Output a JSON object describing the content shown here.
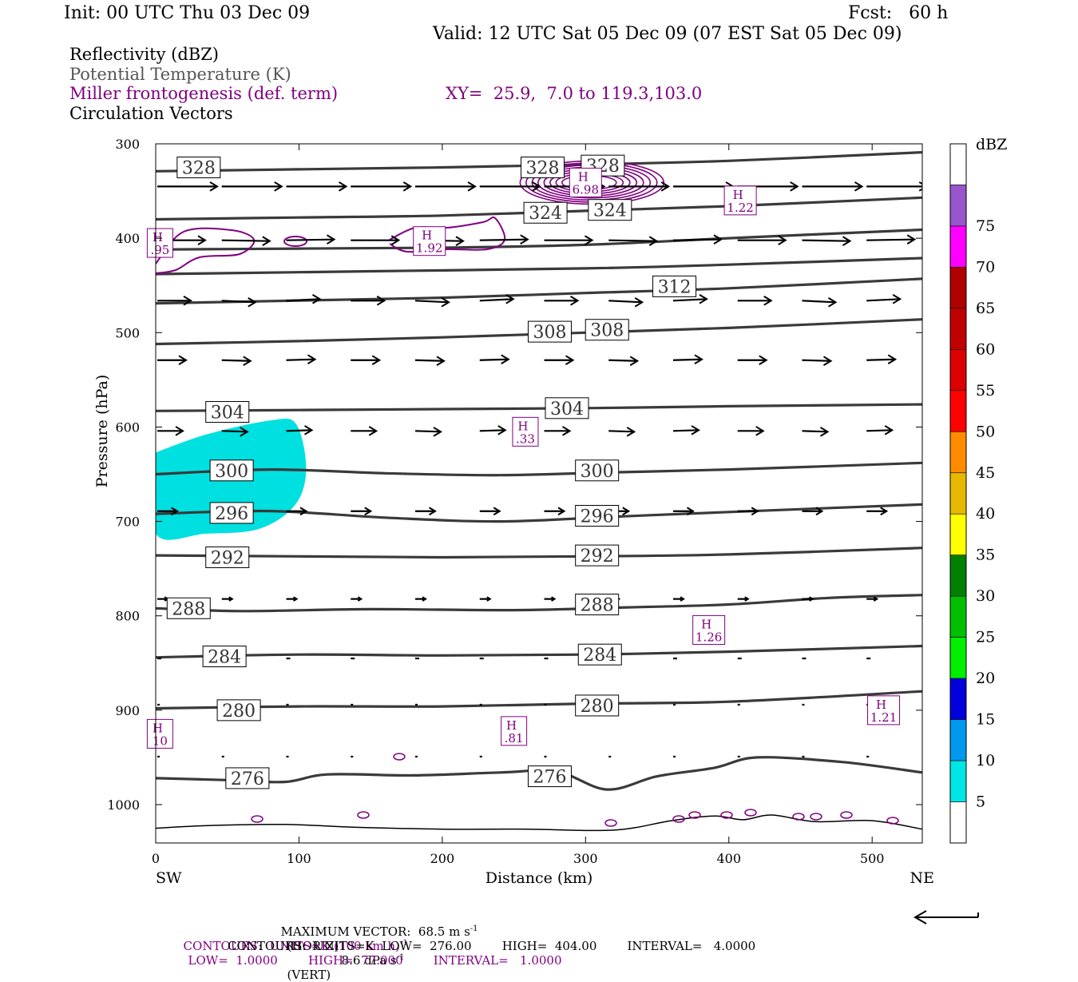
{
  "header": {
    "init": "Init: 00 UTC Thu 03 Dec 09",
    "fcst": "Fcst:   60 h",
    "valid": "Valid: 12 UTC Sat 05 Dec 09 (07 EST Sat 05 Dec 09)"
  },
  "legend": {
    "reflectivity": "Reflectivity (dBZ)",
    "theta": "Potential Temperature (K)",
    "miller": "Miller frontogenesis (def. term)",
    "xy": "XY=  25.9,  7.0 to 119.3,103.0",
    "vectors": "Circulation Vectors"
  },
  "colors": {
    "theta": "#3a3a3a",
    "frontogenesis": "#800080",
    "reflectivity_5": "#00e0e0",
    "vectors": "#000000"
  },
  "chart_data": {
    "type": "cross-section",
    "xlabel": "Distance (km)",
    "ylabel": "Pressure (hPa)",
    "xlim": [
      0,
      535
    ],
    "ylim": [
      1040,
      300
    ],
    "x_ticks": [
      "0",
      "100",
      "200",
      "300",
      "400",
      "500"
    ],
    "y_ticks": [
      "300",
      "400",
      "500",
      "600",
      "700",
      "800",
      "900",
      "1000"
    ],
    "left_end": "SW",
    "right_end": "NE",
    "theta_contours": [
      {
        "label": "328",
        "label_positions": [
          [
            30,
            325
          ],
          [
            270,
            325
          ],
          [
            312,
            323
          ]
        ],
        "points": [
          [
            0,
            329
          ],
          [
            100,
            327
          ],
          [
            200,
            325
          ],
          [
            300,
            322
          ],
          [
            400,
            318
          ],
          [
            535,
            309
          ]
        ]
      },
      {
        "label": "324",
        "label_positions": [
          [
            272,
            373
          ],
          [
            317,
            370
          ]
        ],
        "points": [
          [
            0,
            380
          ],
          [
            100,
            378
          ],
          [
            200,
            376
          ],
          [
            300,
            371
          ],
          [
            400,
            366
          ],
          [
            535,
            357
          ]
        ]
      },
      {
        "label": "",
        "label_positions": [],
        "points": [
          [
            0,
            412
          ],
          [
            100,
            411
          ],
          [
            200,
            410
          ],
          [
            300,
            407
          ],
          [
            400,
            400
          ],
          [
            535,
            391
          ]
        ]
      },
      {
        "label": "",
        "label_positions": [],
        "points": [
          [
            0,
            438
          ],
          [
            150,
            435
          ],
          [
            300,
            432
          ],
          [
            400,
            428
          ],
          [
            535,
            421
          ]
        ]
      },
      {
        "label": "312",
        "label_positions": [
          [
            362,
            451
          ]
        ],
        "points": [
          [
            0,
            469
          ],
          [
            100,
            466
          ],
          [
            200,
            463
          ],
          [
            300,
            458
          ],
          [
            400,
            453
          ],
          [
            535,
            443
          ]
        ]
      },
      {
        "label": "308",
        "label_positions": [
          [
            275,
            499
          ],
          [
            315,
            497
          ]
        ],
        "points": [
          [
            0,
            512
          ],
          [
            100,
            509
          ],
          [
            200,
            505
          ],
          [
            300,
            500
          ],
          [
            400,
            495
          ],
          [
            535,
            486
          ]
        ]
      },
      {
        "label": "304",
        "label_positions": [
          [
            50,
            584
          ],
          [
            287,
            580
          ]
        ],
        "points": [
          [
            0,
            583
          ],
          [
            100,
            582
          ],
          [
            200,
            581
          ],
          [
            300,
            580
          ],
          [
            400,
            578
          ],
          [
            535,
            576
          ]
        ]
      },
      {
        "label": "300",
        "label_positions": [
          [
            53,
            646
          ],
          [
            308,
            646
          ]
        ],
        "points": [
          [
            0,
            650
          ],
          [
            80,
            645
          ],
          [
            160,
            649
          ],
          [
            240,
            651
          ],
          [
            320,
            648
          ],
          [
            400,
            645
          ],
          [
            535,
            638
          ]
        ]
      },
      {
        "label": "296",
        "label_positions": [
          [
            53,
            691
          ],
          [
            308,
            694
          ]
        ],
        "points": [
          [
            0,
            692
          ],
          [
            80,
            689
          ],
          [
            160,
            696
          ],
          [
            240,
            700
          ],
          [
            320,
            695
          ],
          [
            400,
            690
          ],
          [
            535,
            682
          ]
        ]
      },
      {
        "label": "292",
        "label_positions": [
          [
            50,
            738
          ],
          [
            308,
            736
          ]
        ],
        "points": [
          [
            0,
            736
          ],
          [
            100,
            737
          ],
          [
            200,
            738
          ],
          [
            300,
            737
          ],
          [
            400,
            735
          ],
          [
            535,
            728
          ]
        ]
      },
      {
        "label": "288",
        "label_positions": [
          [
            23,
            792
          ],
          [
            308,
            788
          ]
        ],
        "points": [
          [
            0,
            792
          ],
          [
            60,
            795
          ],
          [
            150,
            793
          ],
          [
            250,
            794
          ],
          [
            330,
            791
          ],
          [
            400,
            788
          ],
          [
            470,
            781
          ],
          [
            535,
            778
          ]
        ]
      },
      {
        "label": "284",
        "label_positions": [
          [
            48,
            843
          ],
          [
            310,
            841
          ]
        ],
        "points": [
          [
            0,
            844
          ],
          [
            100,
            841
          ],
          [
            200,
            842
          ],
          [
            300,
            841
          ],
          [
            400,
            838
          ],
          [
            535,
            832
          ]
        ]
      },
      {
        "label": "280",
        "label_positions": [
          [
            58,
            900
          ],
          [
            308,
            895
          ]
        ],
        "points": [
          [
            0,
            898
          ],
          [
            100,
            896
          ],
          [
            200,
            896
          ],
          [
            300,
            893
          ],
          [
            400,
            891
          ],
          [
            535,
            880
          ]
        ]
      },
      {
        "label": "276",
        "label_positions": [
          [
            64,
            972
          ],
          [
            275,
            970
          ]
        ],
        "points": [
          [
            0,
            972
          ],
          [
            50,
            974
          ],
          [
            90,
            976
          ],
          [
            120,
            968
          ],
          [
            180,
            969
          ],
          [
            240,
            966
          ],
          [
            280,
            965
          ],
          [
            315,
            984
          ],
          [
            350,
            970
          ],
          [
            390,
            961
          ],
          [
            420,
            950
          ],
          [
            480,
            955
          ],
          [
            535,
            966
          ]
        ]
      }
    ],
    "frontogenesis_maxima": [
      {
        "label": "6.98",
        "x": 300,
        "p": 341
      },
      {
        "label": "1.22",
        "x": 408,
        "p": 360
      },
      {
        "label": ".95",
        "x": 3,
        "p": 405
      },
      {
        "label": "1.92",
        "x": 191,
        "p": 403
      },
      {
        "label": ".33",
        "x": 258,
        "p": 605
      },
      {
        "label": "1.26",
        "x": 386,
        "p": 815
      },
      {
        "label": "1.21",
        "x": 508,
        "p": 900
      },
      {
        "label": ".81",
        "x": 250,
        "p": 922
      },
      {
        "label": "10",
        "x": 3,
        "p": 925
      }
    ],
    "reflectivity_area": {
      "range_dbz": "5-10",
      "points": [
        [
          0,
          627
        ],
        [
          35,
          608
        ],
        [
          80,
          593
        ],
        [
          98,
          597
        ],
        [
          105,
          645
        ],
        [
          97,
          683
        ],
        [
          72,
          708
        ],
        [
          35,
          713
        ],
        [
          0,
          713
        ]
      ]
    },
    "vectors": {
      "rows": [
        {
          "p": 346,
          "x": [
            0,
            45,
            90,
            135,
            180,
            225,
            270,
            315,
            360,
            405,
            450,
            495
          ],
          "len": 75,
          "dp": 0
        },
        {
          "p": 403,
          "x": [
            0,
            45,
            90,
            135,
            180,
            225,
            270,
            315,
            360,
            405,
            450,
            495
          ],
          "len": 60,
          "dp": 1
        },
        {
          "p": 467,
          "x": [
            0,
            45,
            90,
            135,
            180,
            225,
            270,
            315,
            360,
            405,
            450,
            495
          ],
          "len": 42,
          "dp": 2
        },
        {
          "p": 530,
          "x": [
            0,
            45,
            90,
            135,
            180,
            225,
            270,
            315,
            360,
            405,
            450,
            495
          ],
          "len": 36,
          "dp": 1
        },
        {
          "p": 605,
          "x": [
            0,
            45,
            90,
            135,
            180,
            225,
            270,
            315,
            360,
            405,
            450,
            495
          ],
          "len": 32,
          "dp": 1
        },
        {
          "p": 690,
          "x": [
            0,
            45,
            90,
            135,
            180,
            225,
            270,
            315,
            360,
            405,
            450,
            495
          ],
          "len": 25,
          "dp": 0
        },
        {
          "p": 783,
          "x": [
            0,
            45,
            90,
            135,
            180,
            225,
            270,
            315,
            360,
            405,
            450,
            495
          ],
          "len": 13,
          "dp": 0
        },
        {
          "p": 846,
          "x": [
            0,
            45,
            90,
            135,
            180,
            225,
            270,
            315,
            360,
            405,
            450,
            495
          ],
          "len": 5,
          "dp": 0
        },
        {
          "p": 895,
          "x": [
            0,
            45,
            90,
            135,
            180,
            225,
            270,
            315,
            360,
            405,
            450,
            495
          ],
          "len": 3,
          "dp": 0
        },
        {
          "p": 950,
          "x": [
            0,
            45,
            90,
            135,
            180,
            225,
            270,
            315,
            360,
            405,
            450,
            495
          ],
          "len": 3,
          "dp": 0
        }
      ]
    },
    "colorbar": {
      "title": "dBZ",
      "levels": [
        "5",
        "10",
        "15",
        "20",
        "25",
        "30",
        "35",
        "40",
        "45",
        "50",
        "55",
        "60",
        "65",
        "70",
        "75"
      ],
      "colors": [
        "#ffffff",
        "#00e5e5",
        "#0099ee",
        "#0000dd",
        "#00ee00",
        "#00c000",
        "#008000",
        "#ffff00",
        "#e6b800",
        "#ff8c00",
        "#ff0000",
        "#dd0000",
        "#c00000",
        "#b00000",
        "#ff00ff",
        "#9955cc",
        "#ffffff"
      ]
    },
    "max_vector_ref": {
      "value": "68.5",
      "unit": "m s-1"
    }
  },
  "footer": {
    "line1_a": "MAXIMUM VECTOR:  68.5 m s",
    "line1_b": "(HORIZ)",
    "line1_c": "8.6 dPa s",
    "line1_d": "(VERT)",
    "line2_a": "CONTOURS:  UNITS=K (100 km h)",
    "line2_b": "LOW=  1.0000        HIGH=  77.000        INTERVAL=   1.0000",
    "line3": "CONTOURS:  UNITS=K  LOW=  276.00        HIGH=  404.00        INTERVAL=   4.0000",
    "exp": "-1"
  }
}
